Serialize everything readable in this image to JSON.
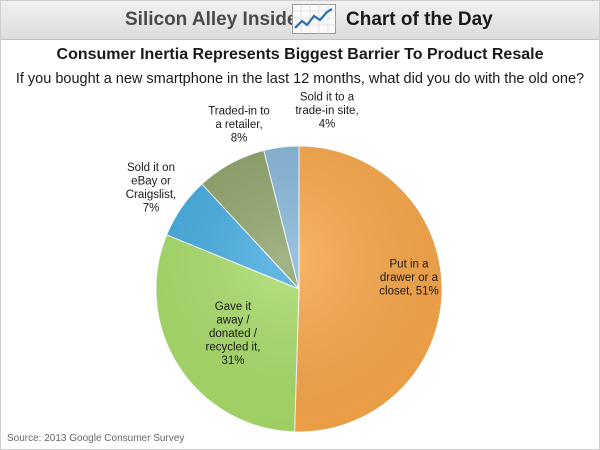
{
  "header": {
    "brand": "Silicon Alley Insider",
    "section": "Chart of the Day",
    "icon": "trend-chart-icon"
  },
  "title": "Consumer Inertia Represents Biggest Barrier To Product Resale",
  "subtitle": "If you bought a new smartphone in the last 12 months, what did you do with the old one?",
  "source": "Source: 2013 Google Consumer Survey",
  "chart_data": {
    "type": "pie",
    "start": "12 o'clock, clockwise",
    "slices": [
      {
        "label_lines": [
          "Put in a",
          "drawer or a",
          "closet, 51%"
        ],
        "value": 51,
        "color": "#f9a84a"
      },
      {
        "label_lines": [
          "Gave it",
          "away /",
          "donated /",
          "recycled it,",
          "31%"
        ],
        "value": 31,
        "color": "#a9dd6a"
      },
      {
        "label_lines": [
          "Sold it on",
          "eBay or",
          "Craigslist,",
          "7%"
        ],
        "value": 7,
        "color": "#45ace0"
      },
      {
        "label_lines": [
          "Traded-in to",
          "a retailer,",
          "8%"
        ],
        "value": 8,
        "color": "#8fa46a"
      },
      {
        "label_lines": [
          "Sold it to a",
          "trade-in site,",
          "4%"
        ],
        "value": 4,
        "color": "#86b6d8"
      }
    ]
  }
}
